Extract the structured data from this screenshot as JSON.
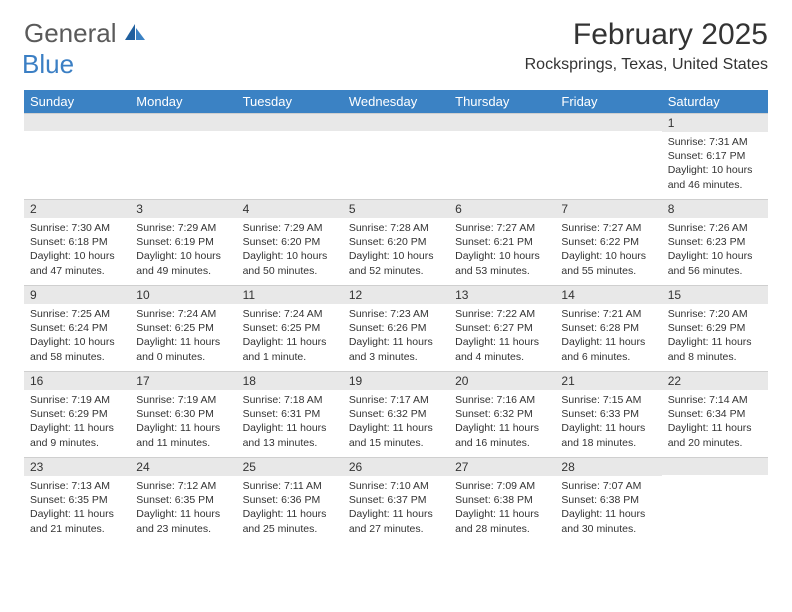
{
  "logo": {
    "text1": "General",
    "text2": "Blue"
  },
  "title": "February 2025",
  "location": "Rocksprings, Texas, United States",
  "header_bg": "#3b82c4",
  "header_fg": "#ffffff",
  "daynum_bg": "#e8e8e8",
  "daynames": [
    "Sunday",
    "Monday",
    "Tuesday",
    "Wednesday",
    "Thursday",
    "Friday",
    "Saturday"
  ],
  "weeks": [
    [
      null,
      null,
      null,
      null,
      null,
      null,
      {
        "n": "1",
        "sunrise": "7:31 AM",
        "sunset": "6:17 PM",
        "daylight": "10 hours and 46 minutes."
      }
    ],
    [
      {
        "n": "2",
        "sunrise": "7:30 AM",
        "sunset": "6:18 PM",
        "daylight": "10 hours and 47 minutes."
      },
      {
        "n": "3",
        "sunrise": "7:29 AM",
        "sunset": "6:19 PM",
        "daylight": "10 hours and 49 minutes."
      },
      {
        "n": "4",
        "sunrise": "7:29 AM",
        "sunset": "6:20 PM",
        "daylight": "10 hours and 50 minutes."
      },
      {
        "n": "5",
        "sunrise": "7:28 AM",
        "sunset": "6:20 PM",
        "daylight": "10 hours and 52 minutes."
      },
      {
        "n": "6",
        "sunrise": "7:27 AM",
        "sunset": "6:21 PM",
        "daylight": "10 hours and 53 minutes."
      },
      {
        "n": "7",
        "sunrise": "7:27 AM",
        "sunset": "6:22 PM",
        "daylight": "10 hours and 55 minutes."
      },
      {
        "n": "8",
        "sunrise": "7:26 AM",
        "sunset": "6:23 PM",
        "daylight": "10 hours and 56 minutes."
      }
    ],
    [
      {
        "n": "9",
        "sunrise": "7:25 AM",
        "sunset": "6:24 PM",
        "daylight": "10 hours and 58 minutes."
      },
      {
        "n": "10",
        "sunrise": "7:24 AM",
        "sunset": "6:25 PM",
        "daylight": "11 hours and 0 minutes."
      },
      {
        "n": "11",
        "sunrise": "7:24 AM",
        "sunset": "6:25 PM",
        "daylight": "11 hours and 1 minute."
      },
      {
        "n": "12",
        "sunrise": "7:23 AM",
        "sunset": "6:26 PM",
        "daylight": "11 hours and 3 minutes."
      },
      {
        "n": "13",
        "sunrise": "7:22 AM",
        "sunset": "6:27 PM",
        "daylight": "11 hours and 4 minutes."
      },
      {
        "n": "14",
        "sunrise": "7:21 AM",
        "sunset": "6:28 PM",
        "daylight": "11 hours and 6 minutes."
      },
      {
        "n": "15",
        "sunrise": "7:20 AM",
        "sunset": "6:29 PM",
        "daylight": "11 hours and 8 minutes."
      }
    ],
    [
      {
        "n": "16",
        "sunrise": "7:19 AM",
        "sunset": "6:29 PM",
        "daylight": "11 hours and 9 minutes."
      },
      {
        "n": "17",
        "sunrise": "7:19 AM",
        "sunset": "6:30 PM",
        "daylight": "11 hours and 11 minutes."
      },
      {
        "n": "18",
        "sunrise": "7:18 AM",
        "sunset": "6:31 PM",
        "daylight": "11 hours and 13 minutes."
      },
      {
        "n": "19",
        "sunrise": "7:17 AM",
        "sunset": "6:32 PM",
        "daylight": "11 hours and 15 minutes."
      },
      {
        "n": "20",
        "sunrise": "7:16 AM",
        "sunset": "6:32 PM",
        "daylight": "11 hours and 16 minutes."
      },
      {
        "n": "21",
        "sunrise": "7:15 AM",
        "sunset": "6:33 PM",
        "daylight": "11 hours and 18 minutes."
      },
      {
        "n": "22",
        "sunrise": "7:14 AM",
        "sunset": "6:34 PM",
        "daylight": "11 hours and 20 minutes."
      }
    ],
    [
      {
        "n": "23",
        "sunrise": "7:13 AM",
        "sunset": "6:35 PM",
        "daylight": "11 hours and 21 minutes."
      },
      {
        "n": "24",
        "sunrise": "7:12 AM",
        "sunset": "6:35 PM",
        "daylight": "11 hours and 23 minutes."
      },
      {
        "n": "25",
        "sunrise": "7:11 AM",
        "sunset": "6:36 PM",
        "daylight": "11 hours and 25 minutes."
      },
      {
        "n": "26",
        "sunrise": "7:10 AM",
        "sunset": "6:37 PM",
        "daylight": "11 hours and 27 minutes."
      },
      {
        "n": "27",
        "sunrise": "7:09 AM",
        "sunset": "6:38 PM",
        "daylight": "11 hours and 28 minutes."
      },
      {
        "n": "28",
        "sunrise": "7:07 AM",
        "sunset": "6:38 PM",
        "daylight": "11 hours and 30 minutes."
      },
      null
    ]
  ],
  "labels": {
    "sunrise": "Sunrise:",
    "sunset": "Sunset:",
    "daylight": "Daylight:"
  }
}
